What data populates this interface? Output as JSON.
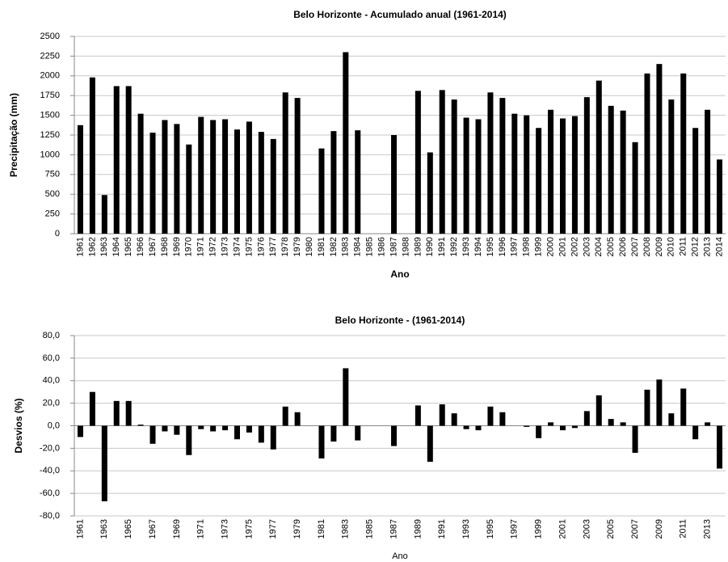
{
  "chart_data": [
    {
      "type": "bar",
      "title": "Belo Horizonte - Acumulado  anual (1961-2014)",
      "x_label": "Ano",
      "y_label": "Precipitação (mm)",
      "color": "#000000",
      "grid": true,
      "categories": [
        "1961",
        "1962",
        "1963",
        "1964",
        "1965",
        "1966",
        "1967",
        "1968",
        "1969",
        "1970",
        "1971",
        "1972",
        "1973",
        "1974",
        "1975",
        "1976",
        "1977",
        "1978",
        "1979",
        "1980",
        "1981",
        "1982",
        "1983",
        "1984",
        "1985",
        "1986",
        "1987",
        "1988",
        "1989",
        "1990",
        "1991",
        "1992",
        "1993",
        "1994",
        "1995",
        "1996",
        "1997",
        "1998",
        "1999",
        "2000",
        "2001",
        "2002",
        "2003",
        "2004",
        "2005",
        "2006",
        "2007",
        "2008",
        "2009",
        "2010",
        "2011",
        "2012",
        "2013",
        "2014"
      ],
      "values": [
        1375,
        1980,
        490,
        1870,
        1870,
        1520,
        1280,
        1440,
        1390,
        1130,
        1480,
        1440,
        1450,
        1320,
        1420,
        1290,
        1200,
        1790,
        1720,
        null,
        1080,
        1300,
        2300,
        1310,
        null,
        null,
        1250,
        null,
        1810,
        1030,
        1820,
        1700,
        1470,
        1450,
        1790,
        1720,
        1520,
        1500,
        1340,
        1570,
        1460,
        1490,
        1730,
        1940,
        1620,
        1560,
        1160,
        2030,
        2150,
        1700,
        2030,
        1340,
        1570,
        940
      ],
      "ylim": [
        0,
        2500
      ],
      "yticks": [
        0,
        250,
        500,
        750,
        1000,
        1250,
        1500,
        1750,
        2000,
        2250,
        2500
      ]
    },
    {
      "type": "bar",
      "title": "Belo Horizonte - (1961-2014)",
      "x_label": "Ano",
      "y_label": "Desvios  (%)",
      "color": "#000000",
      "grid": true,
      "categories": [
        "1961",
        null,
        "1963",
        null,
        "1965",
        null,
        "1967",
        null,
        "1969",
        null,
        "1971",
        null,
        "1973",
        null,
        "1975",
        null,
        "1977",
        null,
        "1979",
        null,
        "1981",
        null,
        "1983",
        null,
        "1985",
        null,
        "1987",
        null,
        "1989",
        null,
        "1991",
        null,
        "1993",
        null,
        "1995",
        null,
        "1997",
        null,
        "1999",
        null,
        "2001",
        null,
        "2003",
        null,
        "2005",
        null,
        "2007",
        null,
        "2009",
        null,
        "2011",
        null,
        "2013",
        null
      ],
      "values": [
        -10,
        30,
        -67,
        22,
        22,
        1,
        -16,
        -5,
        -8,
        -26,
        -3,
        -5,
        -4,
        -12,
        -6,
        -15,
        -21,
        17,
        12,
        null,
        -29,
        -14,
        51,
        -13,
        null,
        null,
        -18,
        null,
        18,
        -32,
        19,
        11,
        -3,
        -4,
        17,
        12,
        0,
        -1,
        -11,
        3,
        -4,
        -2,
        13,
        27,
        6,
        3,
        -24,
        32,
        41,
        11,
        33,
        -12,
        3,
        -38
      ],
      "ylim": [
        -80,
        80
      ],
      "yticks": [
        {
          "value": -80,
          "label": "-80,0"
        },
        {
          "value": -60,
          "label": "-60,0"
        },
        {
          "value": -40,
          "label": "-40,0"
        },
        {
          "value": -20,
          "label": "-20,0"
        },
        {
          "value": 0,
          "label": "0,0"
        },
        {
          "value": 20,
          "label": "20,0"
        },
        {
          "value": 40,
          "label": "40,0"
        },
        {
          "value": 60,
          "label": "60,0"
        },
        {
          "value": 80,
          "label": "80,0"
        }
      ]
    }
  ]
}
